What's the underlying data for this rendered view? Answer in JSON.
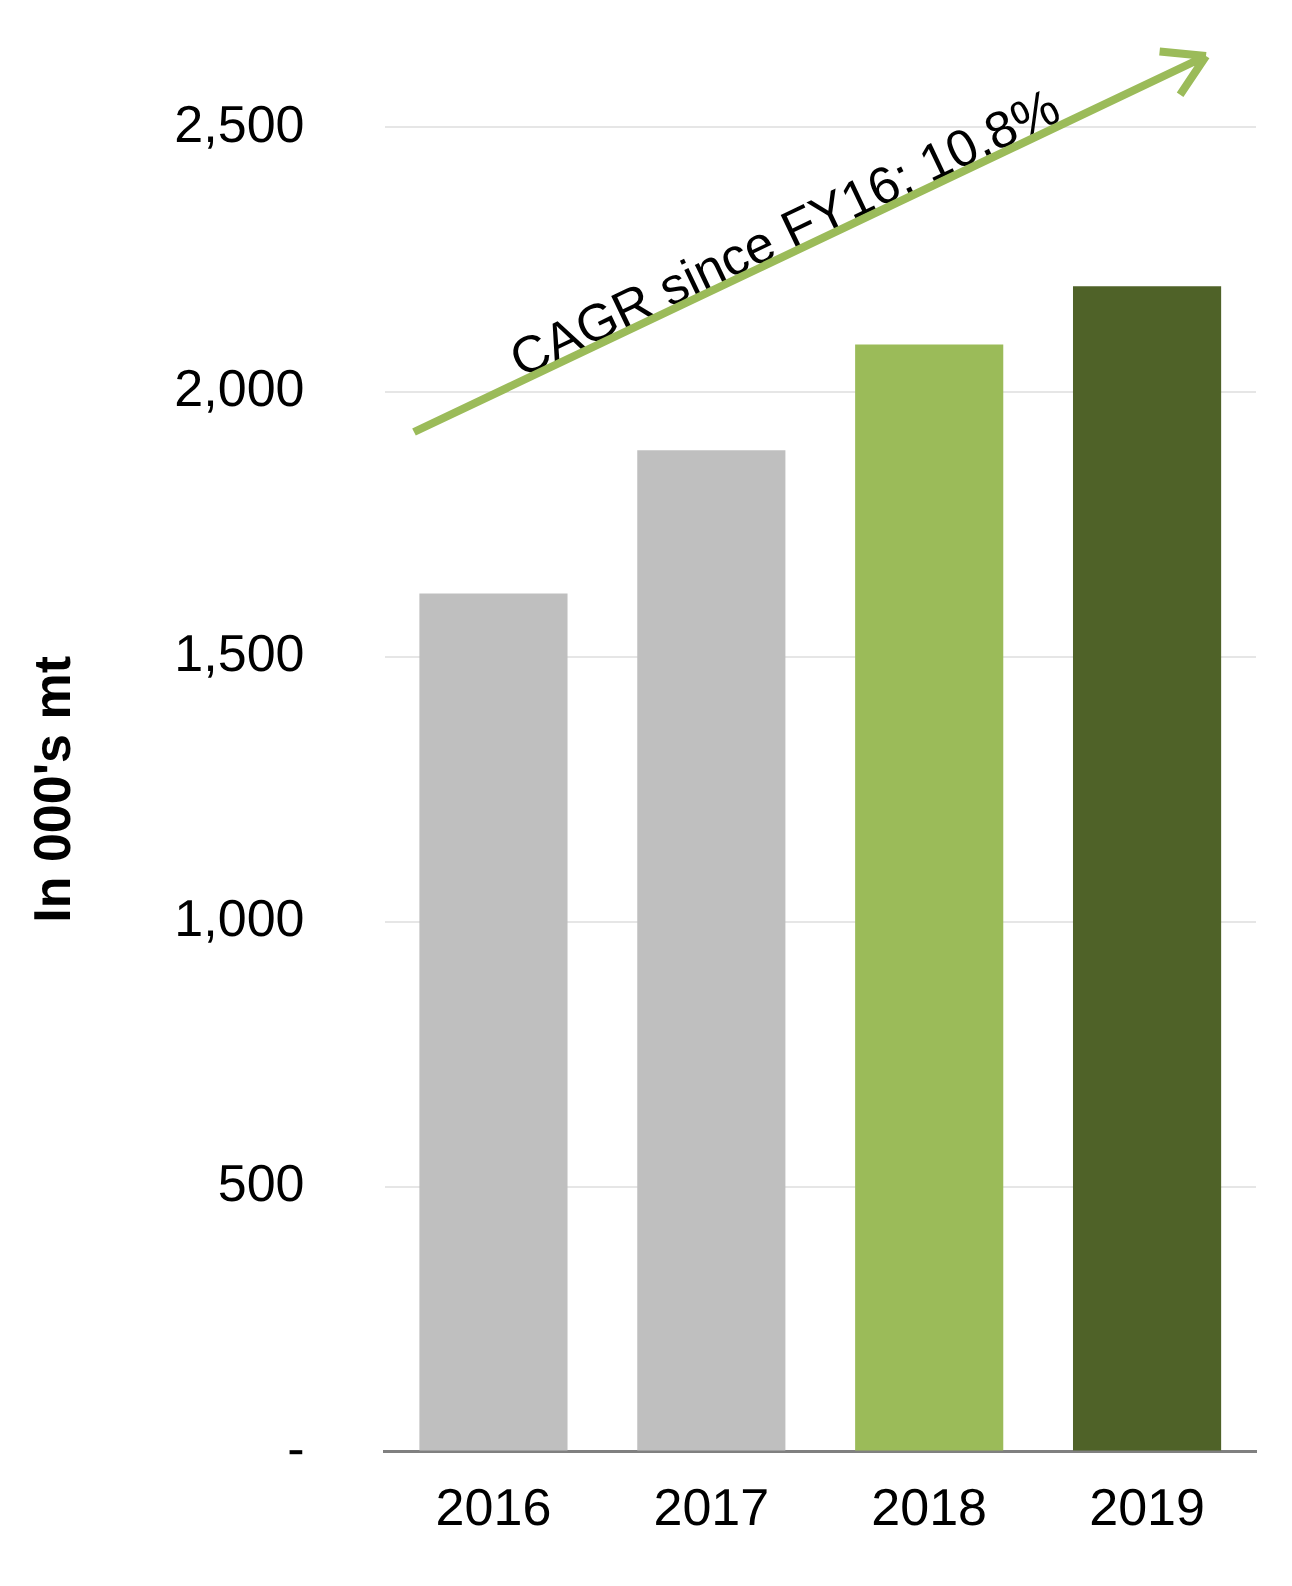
{
  "chart_data": {
    "type": "bar",
    "ylabel": "In 000's mt",
    "categories": [
      "2016",
      "2017",
      "2018",
      "2019"
    ],
    "values": [
      1620,
      1890,
      2090,
      2200
    ],
    "colors": [
      "#bfbfbf",
      "#bfbfbf",
      "#9bbb59",
      "#4f6228"
    ],
    "ylim": [
      0,
      2500
    ],
    "yticks": [
      {
        "value": 0,
        "label": "-"
      },
      500,
      {
        "value": 1000,
        "label": "1,000"
      },
      {
        "value": 1500,
        "label": "1,500"
      },
      {
        "value": 2000,
        "label": "2,000"
      },
      {
        "value": 2500,
        "label": "2,500"
      }
    ],
    "grid": "y",
    "legend": false,
    "annotations": [
      "CAGR since FY16: 10.8%"
    ]
  }
}
